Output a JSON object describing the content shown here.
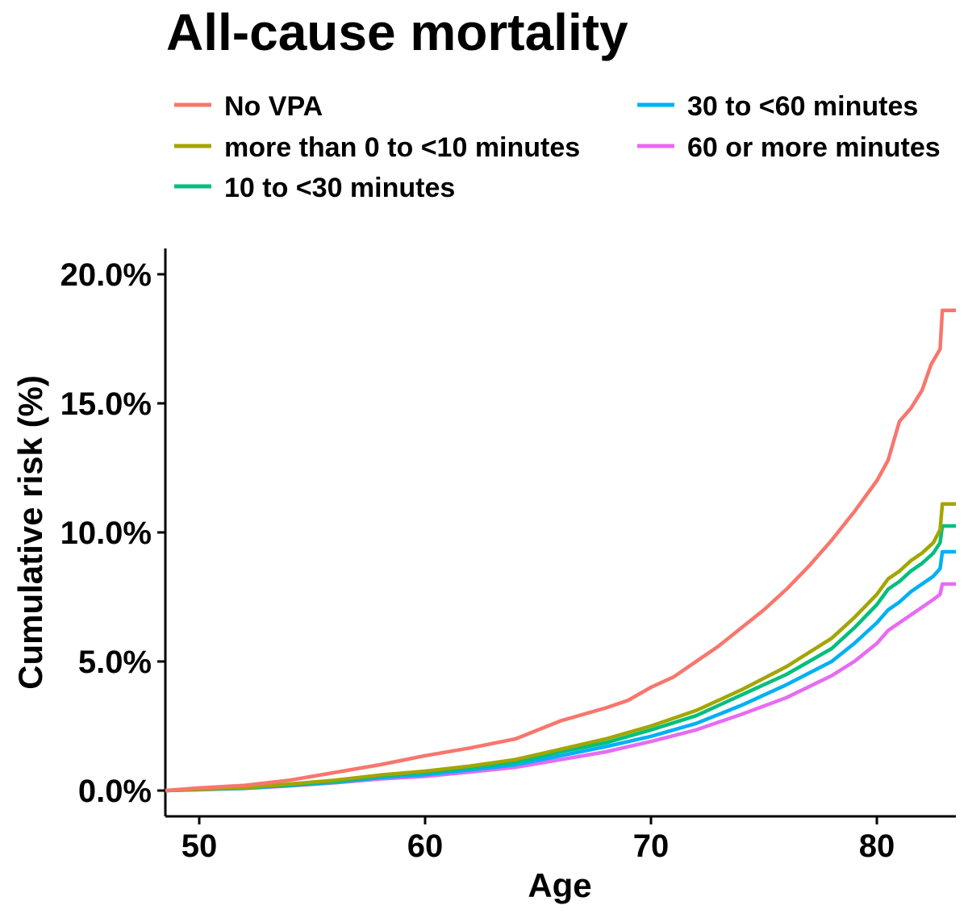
{
  "chart_data": {
    "type": "line",
    "title": "All-cause mortality",
    "xlabel": "Age",
    "ylabel": "Cumulative risk (%)",
    "xlim": [
      48.5,
      83.5
    ],
    "ylim": [
      -1.0,
      21.0
    ],
    "x_ticks": [
      50,
      60,
      70,
      80
    ],
    "x_tick_labels": [
      "50",
      "60",
      "70",
      "80"
    ],
    "y_ticks": [
      0,
      5,
      10,
      15,
      20
    ],
    "y_tick_labels": [
      "0.0%",
      "5.0%",
      "10.0%",
      "15.0%",
      "20.0%"
    ],
    "legend_position": "top",
    "grid": false,
    "series": [
      {
        "name": "No VPA",
        "color": "#F8766D",
        "x": [
          48.5,
          50,
          52,
          54,
          56,
          58,
          60,
          62,
          64,
          66,
          68,
          69,
          70,
          71,
          72,
          73,
          74,
          75,
          76,
          77,
          78,
          79,
          79.5,
          80,
          80.5,
          81,
          81.5,
          82,
          82.4,
          82.6,
          82.8,
          82.9,
          83.5
        ],
        "values": [
          0.0,
          0.1,
          0.2,
          0.4,
          0.7,
          1.0,
          1.35,
          1.65,
          2.0,
          2.7,
          3.2,
          3.5,
          4.0,
          4.4,
          5.0,
          5.6,
          6.3,
          7.0,
          7.8,
          8.7,
          9.7,
          10.8,
          11.4,
          12.0,
          12.8,
          14.3,
          14.8,
          15.5,
          16.5,
          16.8,
          17.1,
          18.6,
          18.6
        ]
      },
      {
        "name": "more than 0 to <10 minutes",
        "color": "#A3A500",
        "x": [
          48.5,
          50,
          52,
          54,
          56,
          58,
          60,
          62,
          64,
          66,
          68,
          70,
          72,
          74,
          76,
          78,
          79,
          80,
          80.5,
          81,
          81.5,
          82,
          82.5,
          82.8,
          82.9,
          83.5
        ],
        "values": [
          0.0,
          0.05,
          0.12,
          0.25,
          0.4,
          0.6,
          0.75,
          0.95,
          1.2,
          1.6,
          2.0,
          2.5,
          3.1,
          3.9,
          4.8,
          5.9,
          6.7,
          7.6,
          8.2,
          8.5,
          8.9,
          9.2,
          9.6,
          10.1,
          11.1,
          11.1
        ]
      },
      {
        "name": "10 to <30 minutes",
        "color": "#00BF7D",
        "x": [
          48.5,
          50,
          52,
          54,
          56,
          58,
          60,
          62,
          64,
          66,
          68,
          70,
          72,
          74,
          76,
          78,
          79,
          80,
          80.5,
          81,
          81.5,
          82,
          82.5,
          82.8,
          82.9,
          83.5
        ],
        "values": [
          0.0,
          0.05,
          0.1,
          0.22,
          0.36,
          0.55,
          0.7,
          0.88,
          1.1,
          1.5,
          1.85,
          2.35,
          2.9,
          3.7,
          4.5,
          5.5,
          6.3,
          7.2,
          7.8,
          8.1,
          8.5,
          8.8,
          9.2,
          9.6,
          10.25,
          10.25
        ]
      },
      {
        "name": "30 to <60 minutes",
        "color": "#00B0F6",
        "x": [
          48.5,
          50,
          52,
          54,
          56,
          58,
          60,
          62,
          64,
          66,
          68,
          70,
          72,
          74,
          76,
          78,
          79,
          80,
          80.5,
          81,
          81.5,
          82,
          82.5,
          82.8,
          82.9,
          83.5
        ],
        "values": [
          0.0,
          0.04,
          0.09,
          0.2,
          0.32,
          0.5,
          0.62,
          0.8,
          1.0,
          1.35,
          1.7,
          2.1,
          2.6,
          3.3,
          4.1,
          5.0,
          5.7,
          6.5,
          7.0,
          7.3,
          7.7,
          8.0,
          8.3,
          8.6,
          9.25,
          9.25
        ]
      },
      {
        "name": "60 or more minutes",
        "color": "#E76BF3",
        "x": [
          48.5,
          50,
          52,
          54,
          56,
          58,
          60,
          62,
          64,
          66,
          68,
          70,
          72,
          74,
          76,
          78,
          79,
          80,
          80.5,
          81,
          81.5,
          82,
          82.5,
          82.8,
          82.9,
          83.5
        ],
        "values": [
          0.0,
          0.03,
          0.08,
          0.18,
          0.3,
          0.45,
          0.55,
          0.72,
          0.9,
          1.2,
          1.5,
          1.9,
          2.35,
          2.95,
          3.6,
          4.45,
          5.0,
          5.7,
          6.2,
          6.5,
          6.8,
          7.1,
          7.4,
          7.6,
          8.0,
          8.0
        ]
      }
    ]
  }
}
